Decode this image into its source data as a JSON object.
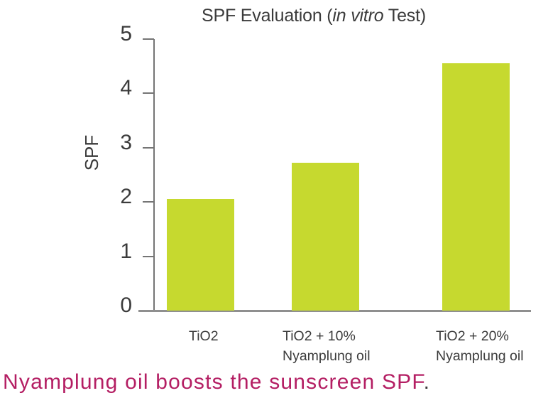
{
  "chart_data": {
    "type": "bar",
    "title": "SPF Evaluation (in vitro Test)",
    "title_parts": {
      "prefix": "SPF Evaluation (",
      "italic": "in vitro",
      "suffix": " Test)"
    },
    "ylabel": "SPF",
    "xlabel": "",
    "categories": [
      "TiO2",
      "TiO2 + 10% Nyamplung oil",
      "TiO2 + 20% Nyamplung oil"
    ],
    "categories_lines": [
      [
        "TiO2"
      ],
      [
        "TiO2 + 10%",
        "Nyamplung oil"
      ],
      [
        "TiO2 + 20%",
        "Nyamplung oil"
      ]
    ],
    "values": [
      2.05,
      2.72,
      4.55
    ],
    "ylim": [
      0,
      5
    ],
    "yticks": [
      0,
      1,
      2,
      3,
      4,
      5
    ],
    "bar_color": "#c6d92f",
    "grid": false,
    "legend": null
  },
  "caption": {
    "text": "Nyamplung oil boosts the sunscreen SPF",
    "period": "."
  },
  "colors": {
    "bar": "#c6d92f",
    "axis": "#757575",
    "baseline": "#8f8f8f",
    "text": "#3b3b3b",
    "caption": "#b41e63",
    "caption_period": "#3a3a3a"
  }
}
